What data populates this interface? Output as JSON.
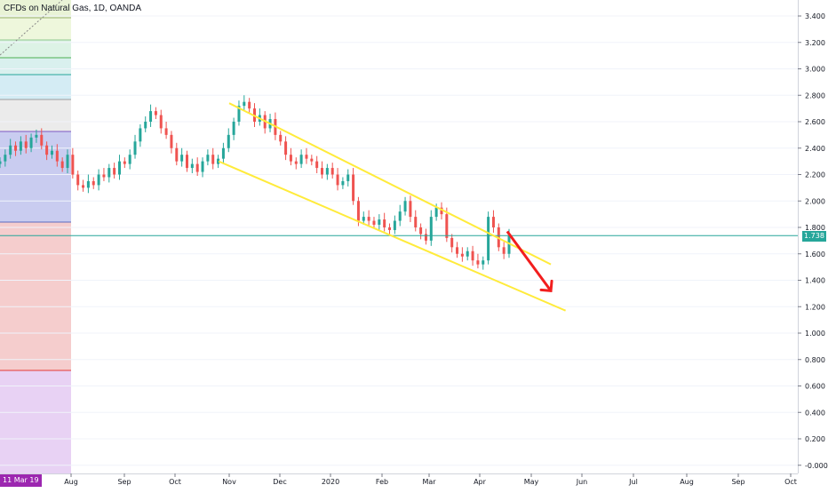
{
  "chart_data": {
    "type": "candlestick",
    "title": "CFDs on Natural Gas, 1D, OANDA",
    "x_tick_labels": [
      "Aug",
      "Sep",
      "Oct",
      "Nov",
      "Dec",
      "2020",
      "Feb",
      "Mar",
      "Apr",
      "May",
      "Jun",
      "Jul",
      "Aug",
      "Sep",
      "Oct"
    ],
    "y_ticks": [
      3.4,
      3.2,
      3.0,
      2.8,
      2.6,
      2.4,
      2.2,
      2.0,
      1.8,
      1.6,
      1.4,
      1.2,
      1.0,
      0.8,
      0.6,
      0.4,
      0.2,
      0.0
    ],
    "y_tick_labels": [
      "3.400",
      "3.200",
      "3.000",
      "2.800",
      "2.600",
      "2.400",
      "2.200",
      "2.000",
      "1.800",
      "1.600",
      "1.400",
      "1.200",
      "1.000",
      "0.800",
      "0.600",
      "0.400",
      "0.200",
      "-0.000"
    ],
    "ylim": [
      -0.05,
      3.5
    ],
    "current_price": 1.738,
    "current_price_label": "1.738",
    "start_label": "11 Mar 19",
    "series": [
      {
        "values": [
          2.3,
          2.35,
          2.42,
          2.38,
          2.45,
          2.4,
          2.48,
          2.5,
          2.42,
          2.35,
          2.38,
          2.3,
          2.25,
          2.35,
          2.2,
          2.12,
          2.1,
          2.15,
          2.12,
          2.2,
          2.18,
          2.25,
          2.2,
          2.3,
          2.28,
          2.35,
          2.45,
          2.55,
          2.6,
          2.68,
          2.65,
          2.55,
          2.5,
          2.4,
          2.3,
          2.35,
          2.25,
          2.28,
          2.22,
          2.3,
          2.35,
          2.28,
          2.32,
          2.4,
          2.5,
          2.6,
          2.72,
          2.75,
          2.7,
          2.6,
          2.65,
          2.55,
          2.62,
          2.5,
          2.45,
          2.35,
          2.3,
          2.28,
          2.35,
          2.32,
          2.3,
          2.25,
          2.2,
          2.25,
          2.2,
          2.12,
          2.15,
          2.2,
          2.0,
          1.85,
          1.88,
          1.85,
          1.82,
          1.86,
          1.8,
          1.78,
          1.85,
          1.92,
          2.0,
          1.88,
          1.8,
          1.75,
          1.7,
          1.88,
          1.95,
          1.9,
          1.72,
          1.65,
          1.6,
          1.58,
          1.62,
          1.55,
          1.52,
          1.55,
          1.88,
          1.8,
          1.65,
          1.6,
          1.738
        ]
      }
    ],
    "channel_upper": [
      {
        "x": "2019-11-01",
        "y": 2.74
      },
      {
        "x": "2020-05-13",
        "y": 1.52
      }
    ],
    "channel_lower": [
      {
        "x": "2019-10-26",
        "y": 2.3
      },
      {
        "x": "2020-05-22",
        "y": 1.17
      }
    ],
    "forecast_arrow": [
      {
        "x": "2020-04-17",
        "y": 1.77
      },
      {
        "x": "2020-05-13",
        "y": 1.32
      }
    ]
  }
}
